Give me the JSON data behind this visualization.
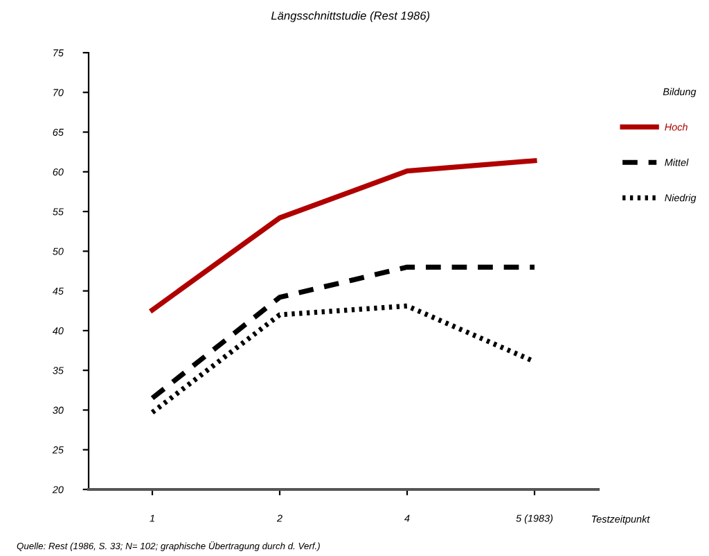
{
  "chart_data": {
    "type": "line",
    "title": "Längsschnittstudie (Rest 1986)",
    "xlabel": "Testzeitpunkt",
    "categories": [
      "1",
      "2",
      "4",
      "5 (1983)"
    ],
    "series": [
      {
        "name": "Hoch",
        "color": "#b00000",
        "line_style": "solid",
        "values": [
          42.6,
          54.2,
          60.1,
          61.4
        ]
      },
      {
        "name": "Mittel",
        "color": "#000000",
        "line_style": "dashed",
        "values": [
          31.5,
          44.2,
          48.0,
          48.0
        ]
      },
      {
        "name": "Niedrig",
        "color": "#000000",
        "line_style": "dotted",
        "values": [
          29.7,
          42.0,
          43.1,
          36.1
        ]
      }
    ],
    "legend_title": "Bildung",
    "legend": "right",
    "grid": false,
    "marker": "none",
    "ylim": [
      20,
      75
    ],
    "yticks": [
      20,
      25,
      30,
      35,
      40,
      45,
      50,
      55,
      60,
      65,
      70,
      75
    ],
    "annotations": [
      "Quelle: Rest (1986, S. 33; N= 102; graphische Übertragung durch d. Verf.)"
    ]
  }
}
